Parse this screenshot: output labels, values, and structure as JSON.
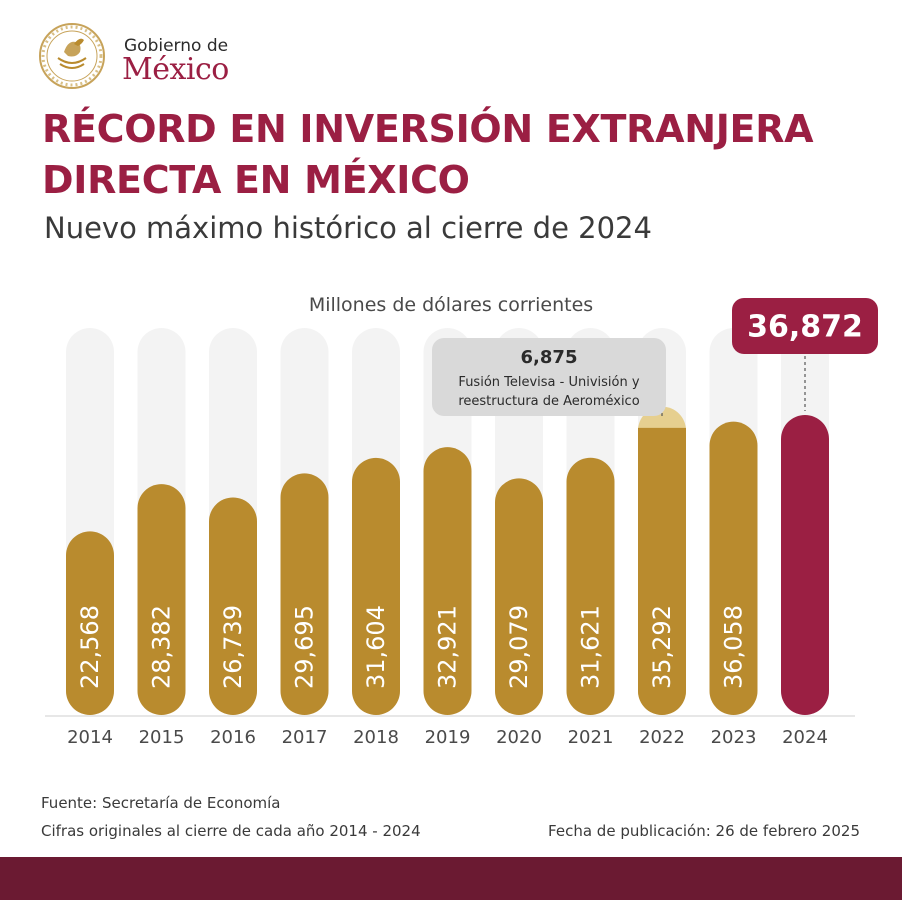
{
  "brand": {
    "line1": "Gobierno de",
    "line2": "México"
  },
  "header": {
    "title_line1": "RÉCORD EN INVERSIÓN EXTRANJERA",
    "title_line2": "DIRECTA EN MÉXICO",
    "subtitle": "Nuevo máximo histórico al cierre de 2024"
  },
  "colors": {
    "gold": "#b98b2e",
    "gold_light": "#e6cf8f",
    "burgundy": "#9b1f43",
    "track": "#f3f3f3",
    "callout_bg": "#d9d9d9",
    "band": "#6b1a32"
  },
  "chart_data": {
    "type": "bar",
    "unit_label": "Millones de dólares corrientes",
    "categories": [
      "2014",
      "2015",
      "2016",
      "2017",
      "2018",
      "2019",
      "2020",
      "2021",
      "2022",
      "2023",
      "2024"
    ],
    "values": [
      22568,
      28382,
      26739,
      29695,
      31604,
      32921,
      29079,
      31621,
      35292,
      36058,
      36872
    ],
    "value_labels": [
      "22,568",
      "28,382",
      "26,739",
      "29,695",
      "31,604",
      "32,921",
      "29,079",
      "31,621",
      "35,292",
      "36,058",
      "36,872"
    ],
    "extra_segment": {
      "category": "2022",
      "value": 6875,
      "label": "6,875",
      "note_line1": "Fusión Televisa - Univisión y",
      "note_line2": "reestructura de Aeroméxico"
    },
    "highlight": {
      "category": "2024",
      "label": "36,872"
    }
  },
  "footer": {
    "source": "Fuente: Secretaría de Economía",
    "note": "Cifras originales al cierre de cada año 2014 - 2024",
    "publication": "Fecha de publicación: 26 de febrero 2025"
  }
}
